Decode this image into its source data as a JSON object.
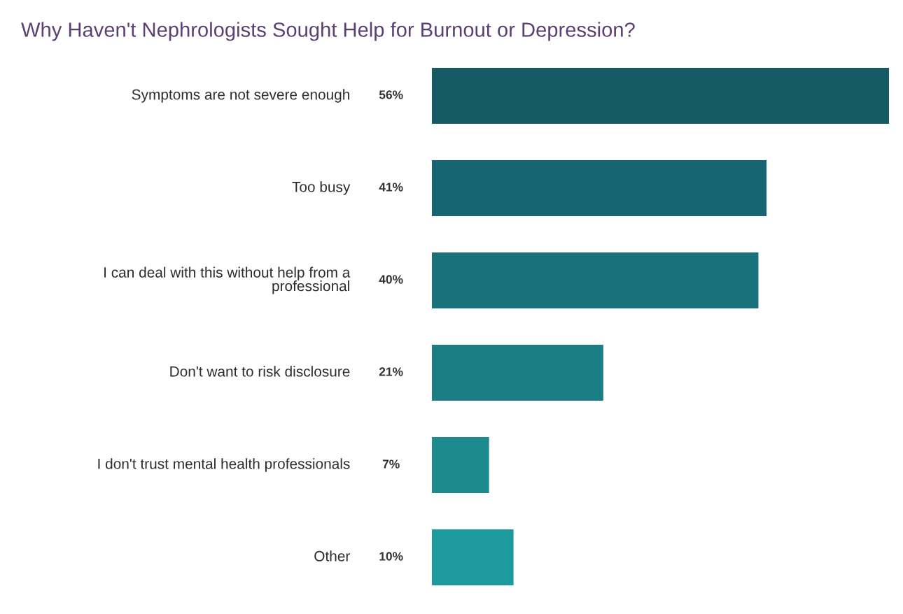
{
  "chart_data": {
    "type": "bar",
    "orientation": "horizontal",
    "title": "Why Haven't Nephrologists Sought Help for Burnout or Depression?",
    "categories": [
      "Symptoms are not severe enough",
      "Too busy",
      "I can deal with this without help from a\nprofessional",
      "Don't want to risk disclosure",
      "I don't trust mental health professionals",
      "Other"
    ],
    "values": [
      56,
      41,
      40,
      21,
      7,
      10
    ],
    "value_labels": [
      "56%",
      "41%",
      "40%",
      "21%",
      "7%",
      "10%"
    ],
    "colors": [
      "#155a65",
      "#166570",
      "#18717a",
      "#1a7e84",
      "#1b8b8e",
      "#1d9a9d"
    ]
  }
}
